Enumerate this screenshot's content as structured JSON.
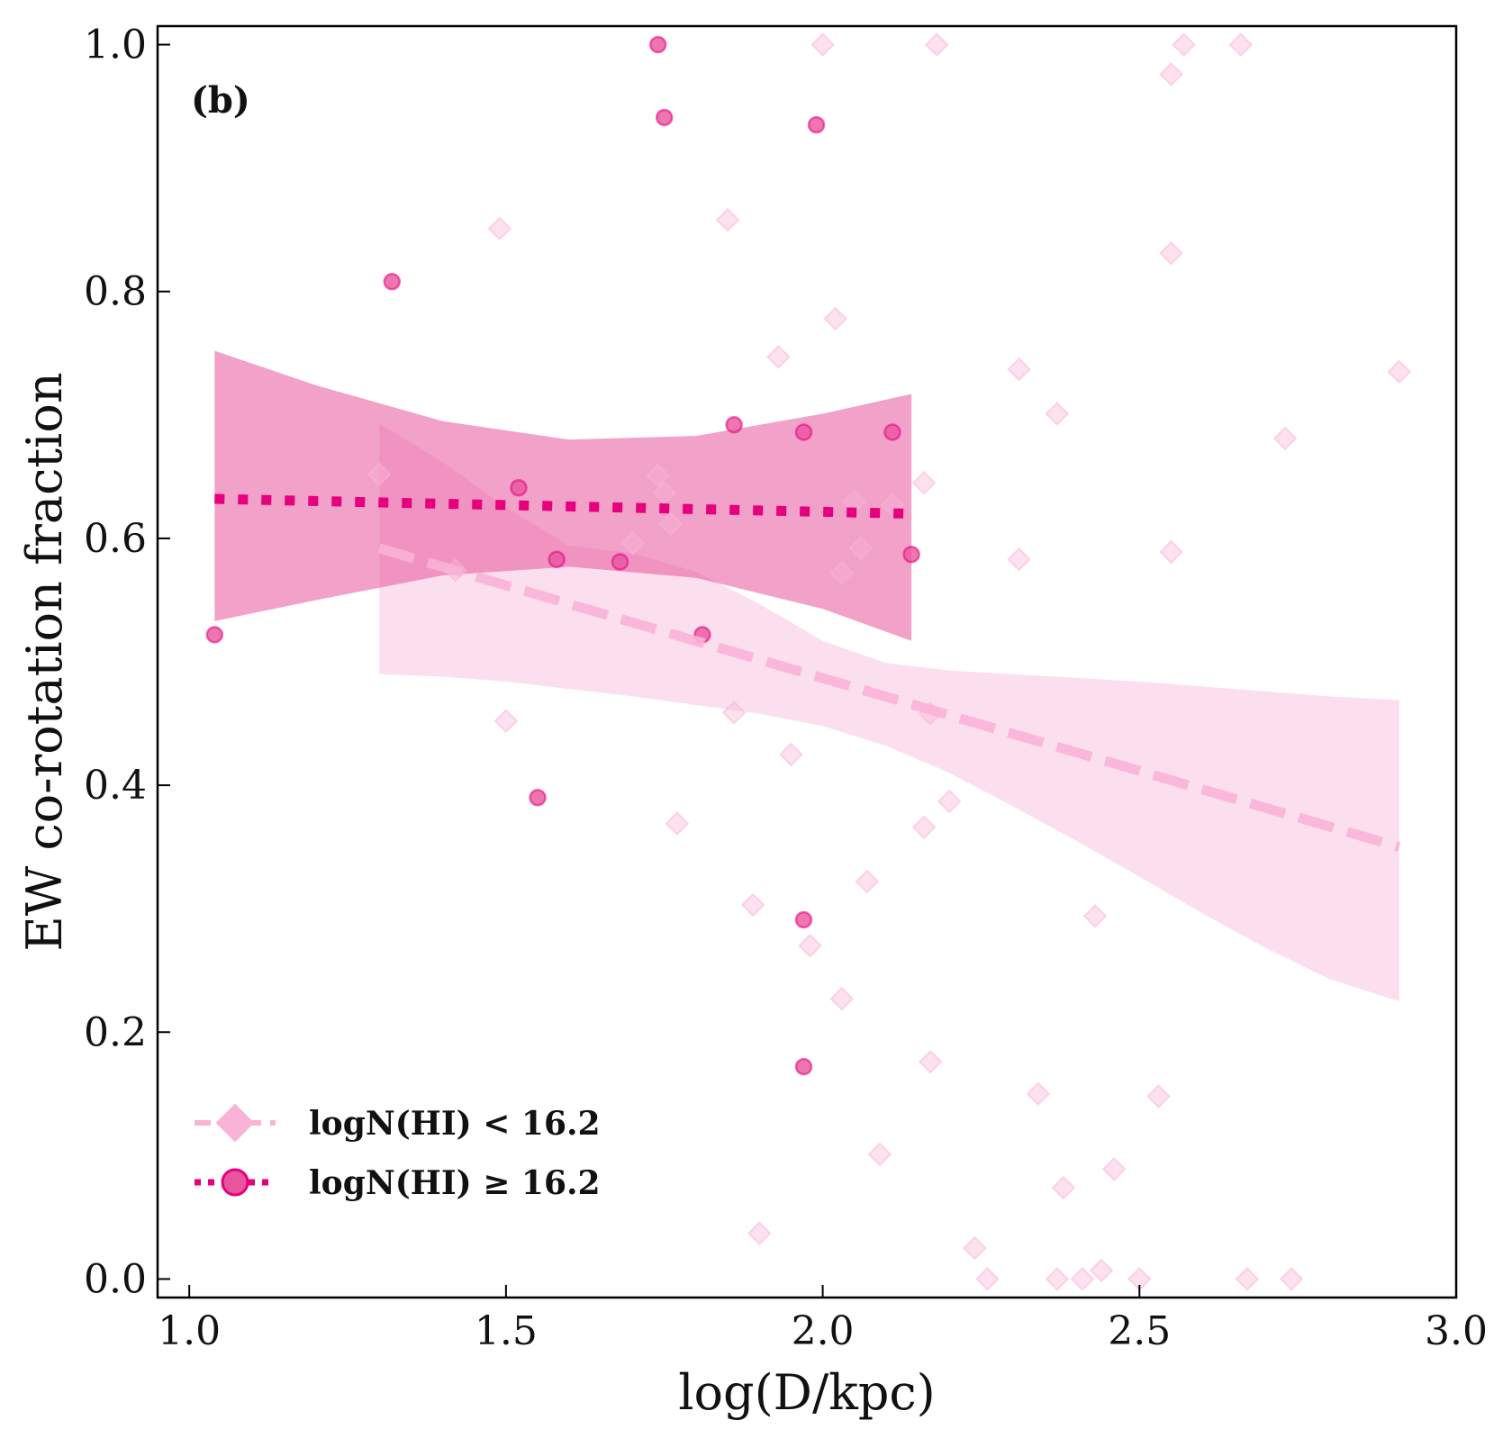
{
  "chart_data": {
    "type": "scatter",
    "panel_label": "(b)",
    "xlabel": "log(D/kpc)",
    "ylabel": "EW co-rotation fraction",
    "xlim": [
      0.95,
      3.0
    ],
    "ylim": [
      -0.015,
      1.015
    ],
    "xticks": [
      1.0,
      1.5,
      2.0,
      2.5,
      3.0
    ],
    "xtick_labels": [
      "1.0",
      "1.5",
      "2.0",
      "2.5",
      "3.0"
    ],
    "yticks": [
      0.0,
      0.2,
      0.4,
      0.6,
      0.8,
      1.0
    ],
    "ytick_labels": [
      "0.0",
      "0.2",
      "0.4",
      "0.6",
      "0.8",
      "1.0"
    ],
    "legend_position": "lower-left",
    "colors": {
      "low": "#f9b3d6",
      "high": "#e8549d",
      "high_line": "#e6007e"
    },
    "series": [
      {
        "name": "logN(HI) < 16.2",
        "legend_label": "logN(HI) < 16.2",
        "marker": "diamond",
        "line_style": "dashed",
        "points": [
          [
            1.3,
            0.652
          ],
          [
            1.49,
            0.851
          ],
          [
            1.5,
            0.452
          ],
          [
            1.74,
            0.651
          ],
          [
            1.75,
            0.637
          ],
          [
            1.76,
            0.612
          ],
          [
            1.77,
            0.369
          ],
          [
            1.7,
            0.596
          ],
          [
            1.42,
            0.574
          ],
          [
            1.85,
            0.858
          ],
          [
            1.86,
            0.459
          ],
          [
            1.89,
            0.303
          ],
          [
            1.9,
            0.037
          ],
          [
            1.93,
            0.747
          ],
          [
            1.95,
            0.425
          ],
          [
            1.98,
            0.27
          ],
          [
            2.0,
            1.0
          ],
          [
            2.02,
            0.778
          ],
          [
            2.03,
            0.227
          ],
          [
            2.03,
            0.572
          ],
          [
            2.05,
            0.63
          ],
          [
            2.06,
            0.592
          ],
          [
            2.07,
            0.322
          ],
          [
            2.09,
            0.101
          ],
          [
            2.11,
            0.627
          ],
          [
            2.16,
            0.645
          ],
          [
            2.16,
            0.366
          ],
          [
            2.17,
            0.458
          ],
          [
            2.17,
            0.176
          ],
          [
            2.18,
            1.0
          ],
          [
            2.2,
            0.387
          ],
          [
            2.24,
            0.025
          ],
          [
            2.26,
            0.0
          ],
          [
            2.31,
            0.737
          ],
          [
            2.31,
            0.583
          ],
          [
            2.34,
            0.15
          ],
          [
            2.37,
            0.0
          ],
          [
            2.37,
            0.701
          ],
          [
            2.38,
            0.074
          ],
          [
            2.41,
            0.0
          ],
          [
            2.43,
            0.294
          ],
          [
            2.44,
            0.007
          ],
          [
            2.46,
            0.089
          ],
          [
            2.5,
            0.0
          ],
          [
            2.53,
            0.148
          ],
          [
            2.55,
            0.976
          ],
          [
            2.55,
            0.589
          ],
          [
            2.55,
            0.831
          ],
          [
            2.57,
            1.0
          ],
          [
            2.66,
            1.0
          ],
          [
            2.67,
            0.0
          ],
          [
            2.73,
            0.681
          ],
          [
            2.74,
            0.0
          ],
          [
            2.91,
            0.735
          ]
        ],
        "fit_line": {
          "x": [
            1.3,
            2.91
          ],
          "y": [
            0.592,
            0.35
          ]
        },
        "confidence_band": {
          "x": [
            1.3,
            1.4,
            1.5,
            1.6,
            1.7,
            1.8,
            1.9,
            2.0,
            2.1,
            2.2,
            2.3,
            2.4,
            2.5,
            2.6,
            2.7,
            2.8,
            2.91
          ],
          "upper": [
            0.693,
            0.662,
            0.625,
            0.594,
            0.588,
            0.573,
            0.547,
            0.517,
            0.499,
            0.493,
            0.49,
            0.487,
            0.484,
            0.48,
            0.476,
            0.472,
            0.469
          ],
          "lower": [
            0.49,
            0.488,
            0.484,
            0.478,
            0.472,
            0.465,
            0.458,
            0.448,
            0.432,
            0.41,
            0.383,
            0.355,
            0.326,
            0.296,
            0.268,
            0.243,
            0.225
          ]
        }
      },
      {
        "name": "logN(HI) ≥ 16.2",
        "legend_label": "logN(HI) ≥ 16.2",
        "marker": "circle",
        "line_style": "dotted",
        "points": [
          [
            1.04,
            0.522
          ],
          [
            1.32,
            0.808
          ],
          [
            1.52,
            0.641
          ],
          [
            1.55,
            0.39
          ],
          [
            1.58,
            0.583
          ],
          [
            1.68,
            0.581
          ],
          [
            1.74,
            1.0
          ],
          [
            1.75,
            0.941
          ],
          [
            1.81,
            0.522
          ],
          [
            1.86,
            0.692
          ],
          [
            1.97,
            0.686
          ],
          [
            1.97,
            0.291
          ],
          [
            1.97,
            0.172
          ],
          [
            1.99,
            0.935
          ],
          [
            2.11,
            0.686
          ],
          [
            2.14,
            0.587
          ]
        ],
        "fit_line": {
          "x": [
            1.04,
            2.14
          ],
          "y": [
            0.632,
            0.62
          ]
        },
        "confidence_band": {
          "x": [
            1.04,
            1.2,
            1.4,
            1.6,
            1.8,
            2.0,
            2.14
          ],
          "upper": [
            0.752,
            0.724,
            0.695,
            0.68,
            0.683,
            0.701,
            0.717
          ],
          "lower": [
            0.533,
            0.55,
            0.57,
            0.577,
            0.568,
            0.543,
            0.517
          ]
        }
      }
    ]
  }
}
